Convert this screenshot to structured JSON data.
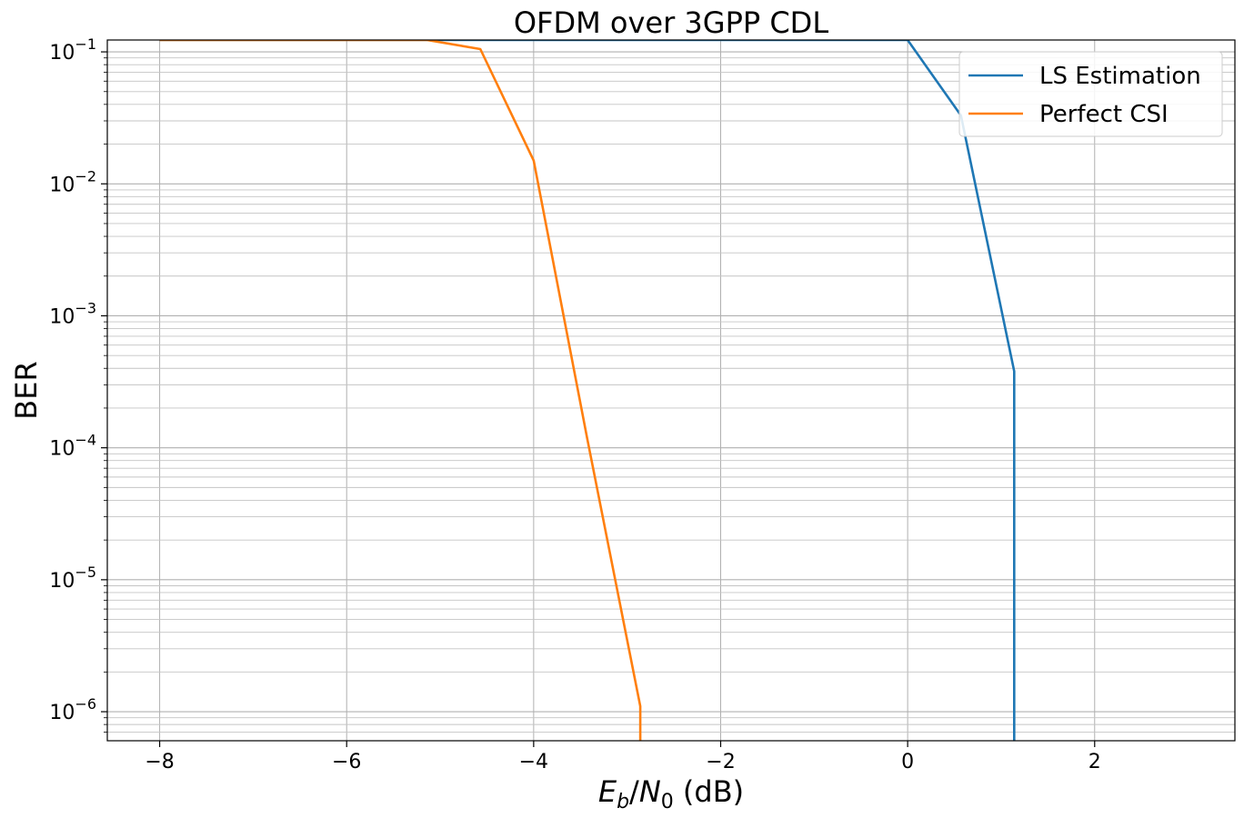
{
  "chart_data": {
    "type": "line",
    "title": "OFDM over 3GPP CDL",
    "ylabel": "BER",
    "xlabel": "E_b/N_0 (dB)",
    "xlim": [
      -8.56,
      3.5
    ],
    "ylim_log10": [
      -6.22,
      -0.91
    ],
    "yscale": "log",
    "grid": "major and minor",
    "legend_position": "top-right",
    "x_ticks": [
      -8,
      -6,
      -4,
      -2,
      0,
      2
    ],
    "x_tick_labels": [
      "−8",
      "−6",
      "−4",
      "−2",
      "0",
      "2"
    ],
    "y_tick_exponents": [
      -1,
      -2,
      -3,
      -4,
      -5,
      -6
    ],
    "y_tick_base": "10",
    "series": [
      {
        "name": "LS Estimation",
        "color": "#1f77b4",
        "points": [
          [
            -8.0,
            0.43
          ],
          [
            -7.43,
            0.416
          ],
          [
            -6.86,
            0.402
          ],
          [
            -6.28,
            0.389
          ],
          [
            -5.71,
            0.376
          ],
          [
            -5.14,
            0.365
          ],
          [
            -4.57,
            0.35
          ],
          [
            -4.0,
            0.337
          ],
          [
            -3.43,
            0.322
          ],
          [
            -2.86,
            0.303
          ],
          [
            -2.28,
            0.283
          ],
          [
            -1.71,
            0.26
          ],
          [
            -1.14,
            0.236
          ],
          [
            -0.57,
            0.205
          ],
          [
            0.0,
            0.162
          ],
          [
            0.57,
            0.033
          ],
          [
            1.14,
            0.00038
          ],
          [
            1.14,
            1e-09
          ]
        ]
      },
      {
        "name": "Perfect CSI",
        "color": "#ff7f0e",
        "points": [
          [
            -8.0,
            0.276
          ],
          [
            -7.43,
            0.262
          ],
          [
            -6.86,
            0.247
          ],
          [
            -6.28,
            0.225
          ],
          [
            -5.71,
            0.2
          ],
          [
            -5.14,
            0.17
          ],
          [
            -4.57,
            0.105
          ],
          [
            -4.0,
            0.015
          ],
          [
            -3.43,
            0.00012
          ],
          [
            -2.86,
            1.1e-06
          ],
          [
            -2.86,
            1e-09
          ]
        ]
      }
    ]
  }
}
